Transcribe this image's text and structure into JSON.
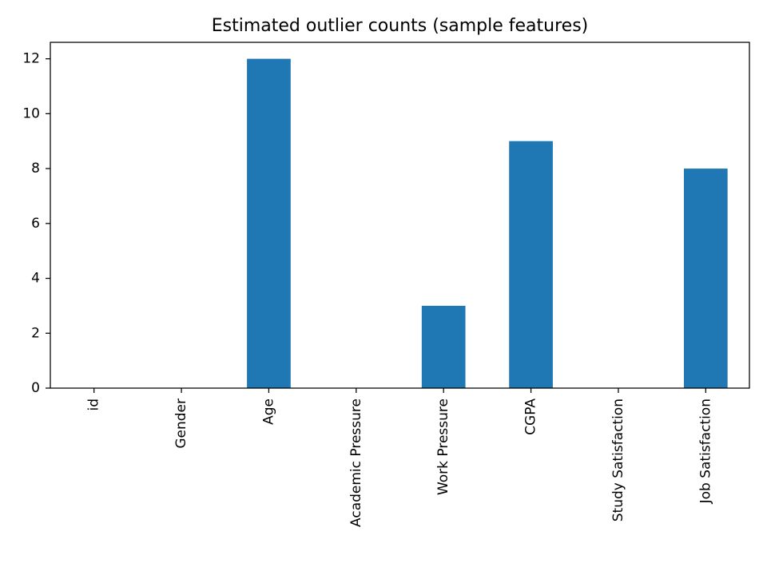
{
  "chart_data": {
    "type": "bar",
    "title": "Estimated outlier counts (sample features)",
    "xlabel": "",
    "ylabel": "",
    "categories": [
      "id",
      "Gender",
      "Age",
      "Academic Pressure",
      "Work Pressure",
      "CGPA",
      "Study Satisfaction",
      "Job Satisfaction"
    ],
    "values": [
      0,
      0,
      12,
      0,
      3,
      9,
      0,
      8
    ],
    "ylim": [
      0,
      12.6
    ],
    "yticks": [
      0,
      2,
      4,
      6,
      8,
      10,
      12
    ],
    "grid": false,
    "legend": "none",
    "bar_color": "#1f77b4"
  }
}
